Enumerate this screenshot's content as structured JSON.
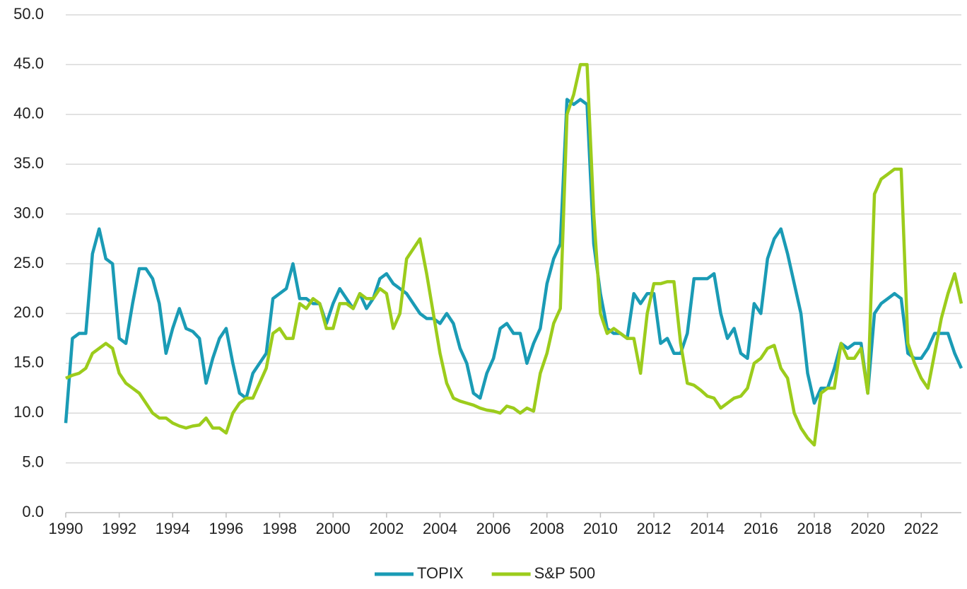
{
  "chart_data": {
    "type": "line",
    "x": [
      1990,
      1990.25,
      1990.5,
      1990.75,
      1991,
      1991.25,
      1991.5,
      1991.75,
      1992,
      1992.25,
      1992.5,
      1992.75,
      1993,
      1993.25,
      1993.5,
      1993.75,
      1994,
      1994.25,
      1994.5,
      1994.75,
      1995,
      1995.25,
      1995.5,
      1995.75,
      1996,
      1996.25,
      1996.5,
      1996.75,
      1997,
      1997.25,
      1997.5,
      1997.75,
      1998,
      1998.25,
      1998.5,
      1998.75,
      1999,
      1999.25,
      1999.5,
      1999.75,
      2000,
      2000.25,
      2000.5,
      2000.75,
      2001,
      2001.25,
      2001.5,
      2001.75,
      2002,
      2002.25,
      2002.5,
      2002.75,
      2003,
      2003.25,
      2003.5,
      2003.75,
      2004,
      2004.25,
      2004.5,
      2004.75,
      2005,
      2005.25,
      2005.5,
      2005.75,
      2006,
      2006.25,
      2006.5,
      2006.75,
      2007,
      2007.25,
      2007.5,
      2007.75,
      2008,
      2008.25,
      2008.5,
      2008.75,
      2009,
      2009.25,
      2009.5,
      2009.75,
      2010,
      2010.25,
      2010.5,
      2010.75,
      2011,
      2011.25,
      2011.5,
      2011.75,
      2012,
      2012.25,
      2012.5,
      2012.75,
      2013,
      2013.25,
      2013.5,
      2013.75,
      2014,
      2014.25,
      2014.5,
      2014.75,
      2015,
      2015.25,
      2015.5,
      2015.75,
      2016,
      2016.25,
      2016.5,
      2016.75,
      2017,
      2017.25,
      2017.5,
      2017.75,
      2018,
      2018.25,
      2018.5,
      2018.75,
      2019,
      2019.25,
      2019.5,
      2019.75,
      2020,
      2020.25,
      2020.5,
      2020.75,
      2021,
      2021.25,
      2021.5,
      2021.75,
      2022,
      2022.25,
      2022.5,
      2022.75,
      2023,
      2023.25,
      2023.5
    ],
    "series": [
      {
        "name": "TOPIX",
        "color": "#1a9bb5",
        "values": [
          9,
          17.5,
          18,
          18,
          26,
          28.5,
          25.5,
          25,
          17.5,
          17,
          21,
          24.5,
          24.5,
          23.5,
          21,
          16,
          18.5,
          20.5,
          18.5,
          18.2,
          17.5,
          13,
          15.5,
          17.5,
          18.5,
          15,
          12,
          11.5,
          14,
          15,
          16,
          21.5,
          22,
          22.5,
          25,
          21.5,
          21.5,
          21,
          21,
          19,
          21,
          22.5,
          21.5,
          20.5,
          22,
          20.5,
          21.5,
          23.5,
          24,
          23,
          22.5,
          22,
          21,
          20,
          19.5,
          19.5,
          19,
          20,
          19,
          16.5,
          15,
          12,
          11.5,
          14,
          15.5,
          18.5,
          19,
          18,
          18,
          15,
          17,
          18.5,
          23,
          25.5,
          27,
          41.5,
          41,
          41.5,
          41,
          27,
          22,
          18.5,
          18,
          18,
          17.5,
          22,
          21,
          22,
          22,
          17,
          17.5,
          16,
          16,
          18,
          23.5,
          23.5,
          23.5,
          24,
          20,
          17.5,
          18.5,
          16,
          15.5,
          21,
          20,
          25.5,
          27.5,
          28.5,
          26,
          23,
          20,
          14,
          11,
          12.5,
          12.5,
          14.5,
          17,
          16.5,
          17,
          17,
          12,
          20,
          21,
          21.5,
          22,
          21.5,
          16,
          15.5,
          15.5,
          16.5,
          18,
          18,
          18,
          16,
          14.5
        ]
      },
      {
        "name": "S&P 500",
        "color": "#9ccc1c",
        "values": [
          13.5,
          13.8,
          14,
          14.5,
          16,
          16.5,
          17,
          16.5,
          14,
          13,
          12.5,
          12,
          11,
          10,
          9.5,
          9.5,
          9,
          8.7,
          8.5,
          8.7,
          8.8,
          9.5,
          8.5,
          8.5,
          8,
          10,
          11,
          11.5,
          11.5,
          13,
          14.5,
          18,
          18.5,
          17.5,
          17.5,
          21,
          20.5,
          21.5,
          21,
          18.5,
          18.5,
          21,
          21,
          20.5,
          22,
          21.5,
          21.5,
          22.5,
          22,
          18.5,
          20,
          25.5,
          26.5,
          27.5,
          24,
          20,
          16,
          13,
          11.5,
          11.2,
          11,
          10.8,
          10.5,
          10.3,
          10.2,
          10,
          10.7,
          10.5,
          10,
          10.5,
          10.2,
          14,
          16,
          19,
          20.5,
          40,
          42,
          45,
          45,
          30,
          20,
          18,
          18.5,
          18,
          17.5,
          17.5,
          14,
          20,
          23,
          23,
          23.2,
          23.2,
          17,
          13,
          12.8,
          12.3,
          11.7,
          11.5,
          10.5,
          11,
          11.5,
          11.7,
          12.5,
          15,
          15.5,
          16.5,
          16.8,
          14.5,
          13.5,
          10,
          8.5,
          7.5,
          6.8,
          12,
          12.5,
          12.5,
          17,
          15.5,
          15.5,
          16.5,
          12,
          32,
          33.5,
          34,
          34.5,
          34.5,
          17,
          15,
          13.5,
          12.5,
          16,
          19.5,
          22,
          24,
          21
        ]
      }
    ],
    "xlim": [
      1990,
      2023.5
    ],
    "xticks": [
      1990,
      1992,
      1994,
      1996,
      1998,
      2000,
      2002,
      2004,
      2006,
      2008,
      2010,
      2012,
      2014,
      2016,
      2018,
      2020,
      2022
    ],
    "ylim": [
      0,
      50
    ],
    "yticks": [
      {
        "value": 0,
        "label": "0.0"
      },
      {
        "value": 5,
        "label": "5.0"
      },
      {
        "value": 10,
        "label": "10.0"
      },
      {
        "value": 15,
        "label": "15.0"
      },
      {
        "value": 20,
        "label": "20.0"
      },
      {
        "value": 25,
        "label": "25.0"
      },
      {
        "value": 30,
        "label": "30.0"
      },
      {
        "value": 35,
        "label": "35.0"
      },
      {
        "value": 40,
        "label": "40.0"
      },
      {
        "value": 45,
        "label": "45.0"
      },
      {
        "value": 50,
        "label": "50.0"
      }
    ],
    "grid": true,
    "legend": "bottom"
  }
}
